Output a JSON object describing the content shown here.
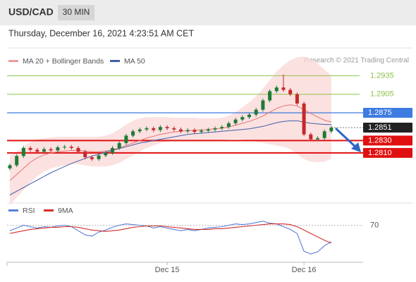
{
  "header": {
    "symbol": "USD/CAD",
    "interval": "30 MIN",
    "timestamp": "Thursday, December 16, 2021 4:23:51 AM CET",
    "credit": "Research © 2021 Trading Central"
  },
  "chart_data": {
    "type": "candlestick",
    "ylim": [
      1.2738,
      1.2972
    ],
    "up_color": "#1e7b34",
    "down_color": "#c62828",
    "open": [
      1.2785,
      1.279,
      1.2805,
      1.2818,
      1.2815,
      1.2812,
      1.2816,
      1.2814,
      1.2819,
      1.282,
      1.2818,
      1.2812,
      1.2803,
      1.28,
      1.2806,
      1.281,
      1.2818,
      1.2826,
      1.2838,
      1.2845,
      1.2848,
      1.285,
      1.2847,
      1.2852,
      1.285,
      1.2848,
      1.2845,
      1.2847,
      1.2844,
      1.2846,
      1.2848,
      1.285,
      1.2852,
      1.2858,
      1.2864,
      1.2868,
      1.2872,
      1.288,
      1.2895,
      1.291,
      1.2916,
      1.2912,
      1.2905,
      1.289,
      1.284,
      1.2832,
      1.2834,
      1.2845
    ],
    "high": [
      1.2793,
      1.2808,
      1.2821,
      1.2821,
      1.2818,
      1.2819,
      1.2819,
      1.2822,
      1.2823,
      1.2823,
      1.2821,
      1.2815,
      1.2806,
      1.2809,
      1.2813,
      1.2821,
      1.2829,
      1.2841,
      1.2848,
      1.2851,
      1.2853,
      1.2853,
      1.2855,
      1.2855,
      1.2853,
      1.2851,
      1.285,
      1.285,
      1.2849,
      1.2851,
      1.2853,
      1.2855,
      1.2861,
      1.2867,
      1.2871,
      1.2875,
      1.2883,
      1.2898,
      1.2913,
      1.2919,
      1.2937,
      1.2915,
      1.2908,
      1.2893,
      1.2843,
      1.2837,
      1.2848,
      1.2854
    ],
    "low": [
      1.2782,
      1.2787,
      1.2802,
      1.2812,
      1.2809,
      1.2809,
      1.2811,
      1.2811,
      1.2816,
      1.2815,
      1.2809,
      1.28,
      1.2797,
      1.2797,
      1.2803,
      1.2807,
      1.2815,
      1.2823,
      1.2835,
      1.2842,
      1.2845,
      1.2844,
      1.2844,
      1.2847,
      1.2845,
      1.2842,
      1.2842,
      1.2841,
      1.2841,
      1.2843,
      1.2845,
      1.2847,
      1.2849,
      1.2855,
      1.2861,
      1.2865,
      1.2869,
      1.2877,
      1.2892,
      1.2907,
      1.2909,
      1.2902,
      1.2887,
      1.2837,
      1.2829,
      1.2829,
      1.2831,
      1.2842
    ],
    "close": [
      1.279,
      1.2805,
      1.2818,
      1.2815,
      1.2812,
      1.2816,
      1.2814,
      1.2819,
      1.282,
      1.2818,
      1.2812,
      1.2803,
      1.28,
      1.2806,
      1.281,
      1.2818,
      1.2826,
      1.2838,
      1.2845,
      1.2848,
      1.285,
      1.2847,
      1.2852,
      1.285,
      1.2848,
      1.2845,
      1.2847,
      1.2844,
      1.2846,
      1.2848,
      1.285,
      1.2852,
      1.2858,
      1.2864,
      1.2868,
      1.2872,
      1.288,
      1.2895,
      1.291,
      1.2916,
      1.2912,
      1.2905,
      1.289,
      1.284,
      1.2832,
      1.2834,
      1.2845,
      1.2851
    ],
    "ma20": {
      "name": "MA 20 + Bollinger Bands",
      "color": "#e57373",
      "legend_color": "#f19a9a",
      "values": [
        1.2765,
        1.2775,
        1.2785,
        1.2795,
        1.2802,
        1.2807,
        1.281,
        1.2812,
        1.2813,
        1.2814,
        1.2814,
        1.2813,
        1.2812,
        1.2812,
        1.2813,
        1.2815,
        1.2818,
        1.2822,
        1.2826,
        1.283,
        1.2834,
        1.2837,
        1.284,
        1.2842,
        1.2844,
        1.2845,
        1.2846,
        1.2847,
        1.2847,
        1.2848,
        1.2849,
        1.285,
        1.2852,
        1.2855,
        1.2858,
        1.2861,
        1.2865,
        1.287,
        1.2876,
        1.2882,
        1.2886,
        1.2888,
        1.2886,
        1.288,
        1.2874,
        1.2868,
        1.2863,
        1.286
      ]
    },
    "bollinger": {
      "color": "#fbdada",
      "upper": [
        1.2805,
        1.2812,
        1.282,
        1.2828,
        1.2832,
        1.2834,
        1.2835,
        1.2836,
        1.2836,
        1.2836,
        1.2836,
        1.2836,
        1.2836,
        1.2836,
        1.2838,
        1.2842,
        1.2848,
        1.2856,
        1.2862,
        1.2866,
        1.2868,
        1.2868,
        1.2868,
        1.2868,
        1.2867,
        1.2867,
        1.2867,
        1.2867,
        1.2866,
        1.2866,
        1.2866,
        1.2867,
        1.287,
        1.2876,
        1.2884,
        1.2892,
        1.2902,
        1.2914,
        1.2928,
        1.2942,
        1.2952,
        1.296,
        1.2965,
        1.2966,
        1.2962,
        1.2955,
        1.2945,
        1.2935
      ],
      "lower": [
        1.2725,
        1.2738,
        1.275,
        1.2762,
        1.2772,
        1.278,
        1.2785,
        1.2788,
        1.279,
        1.2792,
        1.2792,
        1.279,
        1.2788,
        1.2788,
        1.2788,
        1.279,
        1.2794,
        1.28,
        1.2806,
        1.2812,
        1.2818,
        1.2822,
        1.2826,
        1.2828,
        1.283,
        1.2831,
        1.2831,
        1.2831,
        1.2831,
        1.2831,
        1.2831,
        1.2831,
        1.2832,
        1.2833,
        1.2832,
        1.283,
        1.2828,
        1.2826,
        1.2824,
        1.2822,
        1.282,
        1.2816,
        1.2808,
        1.28,
        1.2796,
        1.2795,
        1.2796,
        1.28
      ]
    },
    "ma50": {
      "name": "MA 50",
      "color": "#3f5fa8",
      "values": [
        1.2742,
        1.2748,
        1.2754,
        1.276,
        1.2766,
        1.2772,
        1.2778,
        1.2783,
        1.2788,
        1.2793,
        1.2797,
        1.2801,
        1.2805,
        1.2808,
        1.2811,
        1.2814,
        1.2817,
        1.282,
        1.2823,
        1.2826,
        1.2828,
        1.283,
        1.2832,
        1.2834,
        1.2836,
        1.2838,
        1.284,
        1.2841,
        1.2842,
        1.2843,
        1.2844,
        1.2845,
        1.2846,
        1.2847,
        1.2848,
        1.2849,
        1.2851,
        1.2853,
        1.2856,
        1.2859,
        1.2861,
        1.2862,
        1.2862,
        1.286,
        1.2858,
        1.2857,
        1.2856,
        1.2856
      ]
    },
    "levels": [
      {
        "value": 1.2935,
        "label": "1.2935",
        "color": "#8bc34a",
        "style": "text"
      },
      {
        "value": 1.2905,
        "label": "1.2905",
        "color": "#8bc34a",
        "style": "text"
      },
      {
        "value": 1.2875,
        "label": "1.2875",
        "color": "#3d7be0",
        "style": "box"
      },
      {
        "value": 1.2851,
        "label": "1.2851",
        "color": "#222222",
        "style": "last"
      },
      {
        "value": 1.283,
        "label": "1.2830",
        "color": "#e01010",
        "style": "support"
      },
      {
        "value": 1.281,
        "label": "1.2810",
        "color": "#e01010",
        "style": "support"
      }
    ],
    "xticks": [
      {
        "value": 23,
        "label": "Dec 15"
      },
      {
        "value": 43,
        "label": "Dec 16"
      }
    ],
    "rsi": {
      "ylim": [
        20,
        85
      ],
      "yticks": [
        70
      ],
      "series": [
        {
          "name": "RSI",
          "color": "#5b7fd6",
          "values": [
            62,
            66,
            70,
            68,
            66,
            68,
            67,
            69,
            70,
            68,
            62,
            56,
            54,
            60,
            63,
            67,
            70,
            72,
            71,
            70,
            69,
            66,
            68,
            66,
            64,
            62,
            64,
            62,
            64,
            66,
            67,
            68,
            70,
            72,
            71,
            72,
            74,
            76,
            73,
            72,
            68,
            64,
            58,
            32,
            28,
            31,
            40,
            46
          ]
        },
        {
          "name": "9MA",
          "color": "#d32f2f",
          "values": [
            58,
            60,
            62,
            64,
            65,
            66,
            67,
            67,
            68,
            68,
            67,
            65,
            63,
            62,
            61,
            62,
            63,
            65,
            67,
            68,
            69,
            69,
            69,
            68,
            67,
            66,
            65,
            64,
            64,
            64,
            65,
            65,
            66,
            67,
            68,
            69,
            70,
            71,
            72,
            72,
            72,
            71,
            68,
            63,
            58,
            53,
            48,
            44
          ]
        }
      ]
    }
  }
}
